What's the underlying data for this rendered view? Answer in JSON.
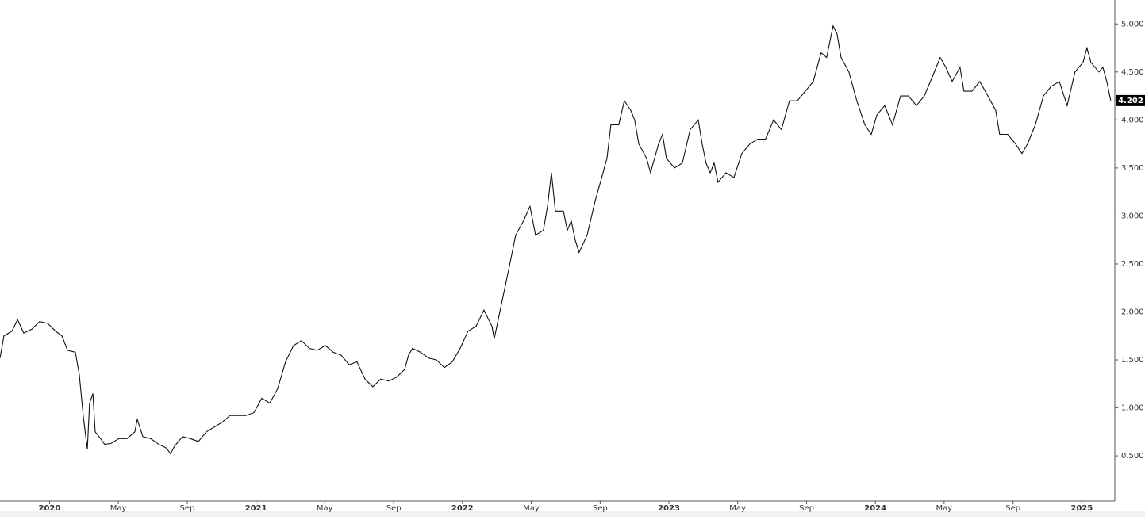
{
  "chart_data": {
    "type": "line",
    "color": "#111111",
    "xlim": [
      2019.76,
      2025.16
    ],
    "xticks": [
      {
        "value": 2020,
        "label": "2020"
      },
      {
        "value": 2020.333,
        "label": "May"
      },
      {
        "value": 2020.667,
        "label": "Sep"
      },
      {
        "value": 2021,
        "label": "2021"
      },
      {
        "value": 2021.333,
        "label": "May"
      },
      {
        "value": 2021.667,
        "label": "Sep"
      },
      {
        "value": 2022,
        "label": "2022"
      },
      {
        "value": 2022.333,
        "label": "May"
      },
      {
        "value": 2022.667,
        "label": "Sep"
      },
      {
        "value": 2023,
        "label": "2023"
      },
      {
        "value": 2023.333,
        "label": "May"
      },
      {
        "value": 2023.667,
        "label": "Sep"
      },
      {
        "value": 2024,
        "label": "2024"
      },
      {
        "value": 2024.333,
        "label": "May"
      },
      {
        "value": 2024.667,
        "label": "Sep"
      },
      {
        "value": 2025,
        "label": "2025"
      }
    ],
    "ylim": [
      0.03,
      5.25
    ],
    "yticks": [
      {
        "value": 0.5,
        "label": "0.500"
      },
      {
        "value": 1,
        "label": "1.000"
      },
      {
        "value": 1.5,
        "label": "1.500"
      },
      {
        "value": 2,
        "label": "2.000"
      },
      {
        "value": 2.5,
        "label": "2.500"
      },
      {
        "value": 3,
        "label": "3.000"
      },
      {
        "value": 3.5,
        "label": "3.500"
      },
      {
        "value": 4,
        "label": "4.000"
      },
      {
        "value": 4.5,
        "label": "4.500"
      },
      {
        "value": 5,
        "label": "5.000"
      }
    ],
    "x": [
      2019.76,
      2019.779,
      2019.818,
      2019.845,
      2019.875,
      2019.914,
      2019.952,
      2019.991,
      2020.029,
      2020.06,
      2020.087,
      2020.125,
      2020.144,
      2020.164,
      2020.183,
      2020.194,
      2020.21,
      2020.221,
      2020.24,
      2020.267,
      2020.298,
      2020.336,
      2020.375,
      2020.413,
      2020.425,
      2020.452,
      2020.49,
      2020.529,
      2020.567,
      2020.586,
      2020.605,
      2020.644,
      2020.682,
      2020.721,
      2020.759,
      2020.798,
      2020.836,
      2020.874,
      2020.913,
      2020.951,
      2020.99,
      2021.028,
      2021.067,
      2021.105,
      2021.143,
      2021.182,
      2021.22,
      2021.259,
      2021.297,
      2021.336,
      2021.374,
      2021.412,
      2021.451,
      2021.489,
      2021.528,
      2021.566,
      2021.604,
      2021.643,
      2021.681,
      2021.72,
      2021.739,
      2021.758,
      2021.797,
      2021.835,
      2021.874,
      2021.912,
      2021.951,
      2021.989,
      2022.027,
      2022.066,
      2022.104,
      2022.143,
      2022.154,
      2022.181,
      2022.22,
      2022.258,
      2022.296,
      2022.327,
      2022.354,
      2022.392,
      2022.412,
      2022.431,
      2022.45,
      2022.489,
      2022.508,
      2022.527,
      2022.546,
      2022.565,
      2022.604,
      2022.642,
      2022.681,
      2022.7,
      2022.719,
      2022.757,
      2022.784,
      2022.815,
      2022.834,
      2022.854,
      2022.892,
      2022.911,
      2022.95,
      2022.969,
      2022.988,
      2023.027,
      2023.065,
      2023.103,
      2023.142,
      2023.161,
      2023.18,
      2023.2,
      2023.219,
      2023.238,
      2023.276,
      2023.315,
      2023.353,
      2023.392,
      2023.43,
      2023.468,
      2023.507,
      2023.545,
      2023.584,
      2023.622,
      2023.661,
      2023.699,
      2023.737,
      2023.764,
      2023.795,
      2023.814,
      2023.834,
      2023.872,
      2023.91,
      2023.949,
      2023.98,
      2024.007,
      2024.045,
      2024.083,
      2024.122,
      2024.16,
      2024.199,
      2024.237,
      2024.276,
      2024.314,
      2024.341,
      2024.372,
      2024.41,
      2024.429,
      2024.468,
      2024.506,
      2024.545,
      2024.583,
      2024.602,
      2024.641,
      2024.679,
      2024.71,
      2024.737,
      2024.775,
      2024.814,
      2024.852,
      2024.891,
      2024.929,
      2024.967,
      2025.006,
      2025.025,
      2025.044,
      2025.083,
      2025.102,
      2025.121,
      2025.14
    ],
    "values": [
      1.52,
      1.75,
      1.8,
      1.92,
      1.78,
      1.82,
      1.9,
      1.88,
      1.8,
      1.75,
      1.6,
      1.58,
      1.35,
      0.9,
      0.57,
      1.05,
      1.15,
      0.75,
      0.7,
      0.62,
      0.63,
      0.68,
      0.68,
      0.75,
      0.88,
      0.7,
      0.68,
      0.62,
      0.58,
      0.52,
      0.6,
      0.7,
      0.68,
      0.65,
      0.75,
      0.8,
      0.85,
      0.92,
      0.92,
      0.92,
      0.95,
      1.1,
      1.05,
      1.2,
      1.48,
      1.65,
      1.7,
      1.62,
      1.6,
      1.65,
      1.58,
      1.55,
      1.45,
      1.48,
      1.3,
      1.22,
      1.3,
      1.28,
      1.32,
      1.4,
      1.55,
      1.62,
      1.58,
      1.52,
      1.5,
      1.42,
      1.48,
      1.62,
      1.8,
      1.85,
      2.02,
      1.85,
      1.72,
      2.0,
      2.4,
      2.8,
      2.95,
      3.1,
      2.8,
      2.85,
      3.1,
      3.45,
      3.05,
      3.05,
      2.85,
      2.95,
      2.75,
      2.62,
      2.8,
      3.15,
      3.45,
      3.6,
      3.95,
      3.95,
      4.2,
      4.1,
      4.0,
      3.75,
      3.6,
      3.45,
      3.75,
      3.85,
      3.6,
      3.5,
      3.55,
      3.9,
      4.0,
      3.75,
      3.55,
      3.45,
      3.55,
      3.35,
      3.45,
      3.4,
      3.65,
      3.75,
      3.8,
      3.8,
      4.0,
      3.9,
      4.2,
      4.2,
      4.3,
      4.4,
      4.7,
      4.65,
      4.98,
      4.9,
      4.65,
      4.5,
      4.2,
      3.95,
      3.85,
      4.05,
      4.15,
      3.95,
      4.25,
      4.25,
      4.15,
      4.25,
      4.45,
      4.65,
      4.55,
      4.4,
      4.55,
      4.3,
      4.3,
      4.4,
      4.25,
      4.1,
      3.85,
      3.85,
      3.75,
      3.65,
      3.75,
      3.95,
      4.25,
      4.35,
      4.4,
      4.15,
      4.5,
      4.6,
      4.75,
      4.6,
      4.5,
      4.55,
      4.4,
      4.202
    ]
  }
}
